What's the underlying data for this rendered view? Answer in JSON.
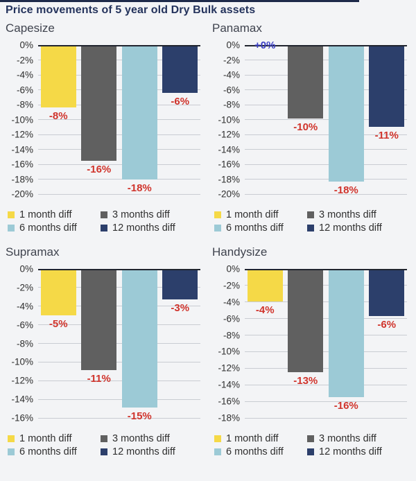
{
  "page": {
    "title": "Price movements of 5 year old Dry Bulk assets",
    "background_color": "#f3f4f6",
    "title_color": "#24335c",
    "top_border_color": "#1e2a4a"
  },
  "colors": {
    "bar_yellow": "#f5d947",
    "bar_gray": "#606060",
    "bar_lightblue": "#9ccad6",
    "bar_navy": "#2c3f6b",
    "negative_label": "#d0342c",
    "positive_label": "#3b3fc4",
    "gridline": "#c9ccd2",
    "zero_line": "#20242e",
    "tick_label": "#2e2e2e"
  },
  "legend": {
    "items": [
      {
        "label": "1 month diff",
        "color": "#f5d947"
      },
      {
        "label": "3 months diff",
        "color": "#606060"
      },
      {
        "label": "6 months diff",
        "color": "#9ccad6"
      },
      {
        "label": "12 months diff",
        "color": "#2c3f6b"
      }
    ],
    "position": "bottom"
  },
  "chart_data": [
    {
      "type": "bar",
      "title": "Capesize",
      "categories": [
        "1 month diff",
        "3 months diff",
        "6 months diff",
        "12 months diff"
      ],
      "values": [
        -8.4,
        -15.5,
        -18.0,
        -6.4
      ],
      "data_labels": [
        "-8%",
        "-16%",
        "-18%",
        "-6%"
      ],
      "label_colors": [
        "#d0342c",
        "#d0342c",
        "#d0342c",
        "#d0342c"
      ],
      "ylim": [
        0,
        -20
      ],
      "yticks": [
        "0%",
        "-2%",
        "-4%",
        "-6%",
        "-8%",
        "-10%",
        "-12%",
        "-14%",
        "-16%",
        "-18%",
        "-20%"
      ],
      "grid": true
    },
    {
      "type": "bar",
      "title": "Panamax",
      "categories": [
        "1 month diff",
        "3 months diff",
        "6 months diff",
        "12 months diff"
      ],
      "values": [
        0,
        -9.9,
        -18.3,
        -11.0
      ],
      "data_labels": [
        "+0%",
        "-10%",
        "-18%",
        "-11%"
      ],
      "label_colors": [
        "#3b3fc4",
        "#d0342c",
        "#d0342c",
        "#d0342c"
      ],
      "ylim": [
        0,
        -20
      ],
      "yticks": [
        "0%",
        "-2%",
        "-4%",
        "-6%",
        "-8%",
        "-10%",
        "-12%",
        "-14%",
        "-16%",
        "-18%",
        "-20%"
      ],
      "grid": true
    },
    {
      "type": "bar",
      "title": "Supramax",
      "categories": [
        "1 month diff",
        "3 months diff",
        "6 months diff",
        "12 months diff"
      ],
      "values": [
        -5.0,
        -10.9,
        -14.9,
        -3.3
      ],
      "data_labels": [
        "-5%",
        "-11%",
        "-15%",
        "-3%"
      ],
      "label_colors": [
        "#d0342c",
        "#d0342c",
        "#d0342c",
        "#d0342c"
      ],
      "ylim": [
        0,
        -16
      ],
      "yticks": [
        "0%",
        "-2%",
        "-4%",
        "-6%",
        "-8%",
        "-10%",
        "-12%",
        "-14%",
        "-16%"
      ],
      "grid": true
    },
    {
      "type": "bar",
      "title": "Handysize",
      "categories": [
        "1 month diff",
        "3 months diff",
        "6 months diff",
        "12 months diff"
      ],
      "values": [
        -3.9,
        -12.5,
        -15.5,
        -5.7
      ],
      "data_labels": [
        "-4%",
        "-13%",
        "-16%",
        "-6%"
      ],
      "label_colors": [
        "#d0342c",
        "#d0342c",
        "#d0342c",
        "#d0342c"
      ],
      "ylim": [
        0,
        -18
      ],
      "yticks": [
        "0%",
        "-2%",
        "-4%",
        "-6%",
        "-8%",
        "-10%",
        "-12%",
        "-14%",
        "-16%",
        "-18%"
      ],
      "grid": true
    }
  ]
}
